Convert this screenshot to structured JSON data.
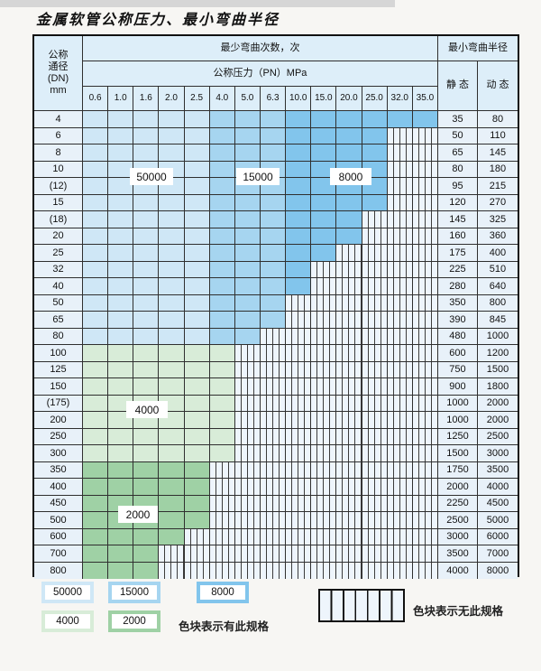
{
  "title": "金属软管公称压力、最小弯曲半径",
  "header": {
    "dn_lines": [
      "公称",
      "通径",
      "(DN)",
      "mm"
    ],
    "bend_cycles_label": "最少弯曲次数，次",
    "min_bend_radius_label": "最小弯曲半径",
    "pressure_label": "公称压力（PN）MPa",
    "static_label": "静 态",
    "dynamic_label": "动 态",
    "pressure_ticks": [
      "0.6",
      "1.0",
      "1.6",
      "2.0",
      "2.5",
      "4.0",
      "5.0",
      "6.3",
      "10.0",
      "15.0",
      "20.0",
      "25.0",
      "32.0",
      "35.0"
    ]
  },
  "colors": {
    "c50000": "#cfe7f6",
    "c15000": "#a6d5f0",
    "c8000": "#82c5ec",
    "c4000": "#d8ecd8",
    "c2000": "#9fd1a5",
    "empty_bg": "#eef5fc",
    "stripe_line": "#3c3c3c",
    "grid": "#2f2f2f",
    "outer": "#111111",
    "header_bg": "#ddeef9",
    "side_bg": "#e8f1f9"
  },
  "cycle_column_bands": [
    {
      "cycles": "50000",
      "pn_columns": [
        "0.6",
        "1.0",
        "1.6",
        "2.0",
        "2.5"
      ]
    },
    {
      "cycles": "15000",
      "pn_columns": [
        "4.0",
        "5.0",
        "6.3"
      ]
    },
    {
      "cycles": "8000",
      "pn_columns": [
        "10.0",
        "15.0",
        "20.0",
        "25.0",
        "32.0",
        "35.0"
      ]
    }
  ],
  "cycle_row_bands": [
    {
      "cycles": "4000",
      "dn_rows": [
        "100",
        "125",
        "150",
        "(175)",
        "200",
        "250",
        "300"
      ]
    },
    {
      "cycles": "2000",
      "dn_rows": [
        "350",
        "400",
        "450",
        "500",
        "600",
        "700",
        "800"
      ]
    }
  ],
  "rows": [
    {
      "dn": "4",
      "band": "blue",
      "colored_cols": 14,
      "max_pn": "35.0",
      "static": "35",
      "dynamic": "80"
    },
    {
      "dn": "6",
      "band": "blue",
      "colored_cols": 12,
      "max_pn": "25.0",
      "static": "50",
      "dynamic": "110"
    },
    {
      "dn": "8",
      "band": "blue",
      "colored_cols": 12,
      "max_pn": "25.0",
      "static": "65",
      "dynamic": "145"
    },
    {
      "dn": "10",
      "band": "blue",
      "colored_cols": 12,
      "max_pn": "25.0",
      "static": "80",
      "dynamic": "180"
    },
    {
      "dn": "(12)",
      "band": "blue",
      "colored_cols": 12,
      "max_pn": "25.0",
      "static": "95",
      "dynamic": "215"
    },
    {
      "dn": "15",
      "band": "blue",
      "colored_cols": 12,
      "max_pn": "25.0",
      "static": "120",
      "dynamic": "270"
    },
    {
      "dn": "(18)",
      "band": "blue",
      "colored_cols": 11,
      "max_pn": "20.0",
      "static": "145",
      "dynamic": "325"
    },
    {
      "dn": "20",
      "band": "blue",
      "colored_cols": 11,
      "max_pn": "20.0",
      "static": "160",
      "dynamic": "360"
    },
    {
      "dn": "25",
      "band": "blue",
      "colored_cols": 10,
      "max_pn": "15.0",
      "static": "175",
      "dynamic": "400"
    },
    {
      "dn": "32",
      "band": "blue",
      "colored_cols": 9,
      "max_pn": "10.0",
      "static": "225",
      "dynamic": "510"
    },
    {
      "dn": "40",
      "band": "blue",
      "colored_cols": 9,
      "max_pn": "10.0",
      "static": "280",
      "dynamic": "640"
    },
    {
      "dn": "50",
      "band": "blue",
      "colored_cols": 8,
      "max_pn": "6.3",
      "static": "350",
      "dynamic": "800"
    },
    {
      "dn": "65",
      "band": "blue",
      "colored_cols": 8,
      "max_pn": "6.3",
      "static": "390",
      "dynamic": "845"
    },
    {
      "dn": "80",
      "band": "blue",
      "colored_cols": 7,
      "max_pn": "5.0",
      "static": "480",
      "dynamic": "1000"
    },
    {
      "dn": "100",
      "band": "g4000",
      "colored_cols": 6,
      "max_pn": "4.0",
      "static": "600",
      "dynamic": "1200"
    },
    {
      "dn": "125",
      "band": "g4000",
      "colored_cols": 6,
      "max_pn": "4.0",
      "static": "750",
      "dynamic": "1500"
    },
    {
      "dn": "150",
      "band": "g4000",
      "colored_cols": 6,
      "max_pn": "4.0",
      "static": "900",
      "dynamic": "1800"
    },
    {
      "dn": "(175)",
      "band": "g4000",
      "colored_cols": 6,
      "max_pn": "4.0",
      "static": "1000",
      "dynamic": "2000"
    },
    {
      "dn": "200",
      "band": "g4000",
      "colored_cols": 6,
      "max_pn": "4.0",
      "static": "1000",
      "dynamic": "2000"
    },
    {
      "dn": "250",
      "band": "g4000",
      "colored_cols": 6,
      "max_pn": "4.0",
      "static": "1250",
      "dynamic": "2500"
    },
    {
      "dn": "300",
      "band": "g4000",
      "colored_cols": 6,
      "max_pn": "4.0",
      "static": "1500",
      "dynamic": "3000"
    },
    {
      "dn": "350",
      "band": "g2000",
      "colored_cols": 5,
      "max_pn": "2.5",
      "static": "1750",
      "dynamic": "3500"
    },
    {
      "dn": "400",
      "band": "g2000",
      "colored_cols": 5,
      "max_pn": "2.5",
      "static": "2000",
      "dynamic": "4000"
    },
    {
      "dn": "450",
      "band": "g2000",
      "colored_cols": 5,
      "max_pn": "2.5",
      "static": "2250",
      "dynamic": "4500"
    },
    {
      "dn": "500",
      "band": "g2000",
      "colored_cols": 5,
      "max_pn": "2.5",
      "static": "2500",
      "dynamic": "5000"
    },
    {
      "dn": "600",
      "band": "g2000",
      "colored_cols": 4,
      "max_pn": "2.0",
      "static": "3000",
      "dynamic": "6000"
    },
    {
      "dn": "700",
      "band": "g2000",
      "colored_cols": 3,
      "max_pn": "1.6",
      "static": "3500",
      "dynamic": "7000"
    },
    {
      "dn": "800",
      "band": "g2000",
      "colored_cols": 3,
      "max_pn": "1.6",
      "static": "4000",
      "dynamic": "8000"
    }
  ],
  "overlay_labels": [
    {
      "text": "50000"
    },
    {
      "text": "15000"
    },
    {
      "text": "8000"
    },
    {
      "text": "4000"
    },
    {
      "text": "2000"
    }
  ],
  "legend": {
    "swatches": [
      {
        "label": "50000",
        "color_key": "c50000"
      },
      {
        "label": "15000",
        "color_key": "c15000"
      },
      {
        "label": "8000",
        "color_key": "c8000"
      },
      {
        "label": "4000",
        "color_key": "c4000"
      },
      {
        "label": "2000",
        "color_key": "c2000"
      }
    ],
    "has_spec_text": "色块表示有此规格",
    "no_spec_text": "色块表示无此规格"
  }
}
